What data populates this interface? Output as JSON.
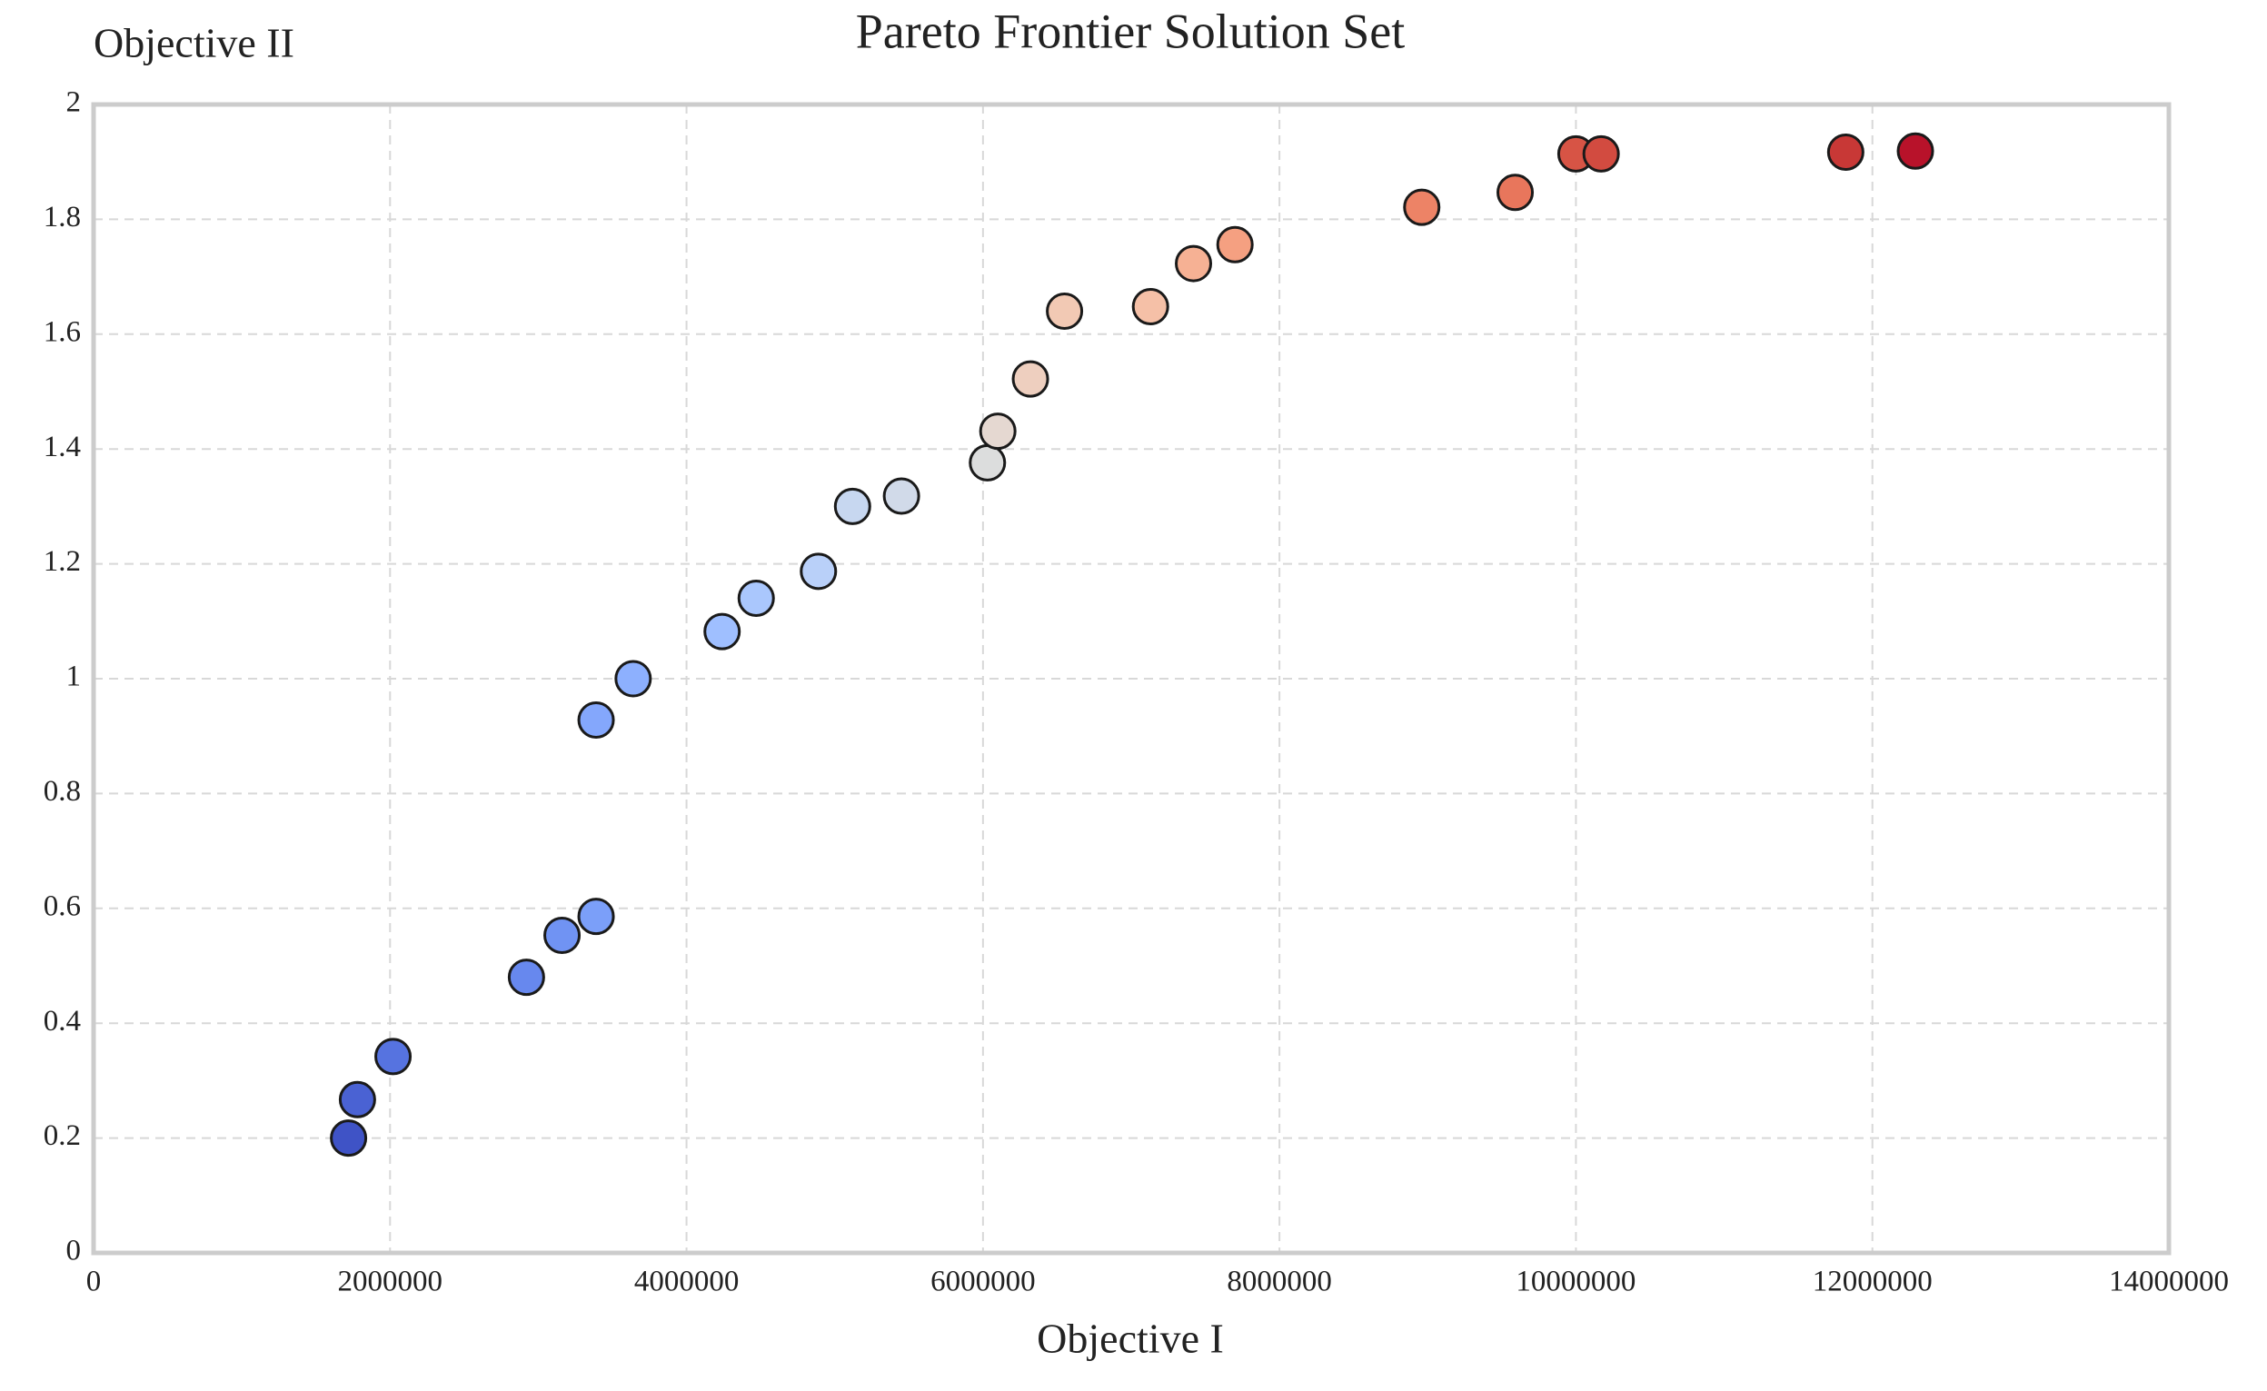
{
  "chart_data": {
    "type": "scatter",
    "title": "Pareto Frontier Solution Set",
    "x_label": "Objective I",
    "y_label": "Objective II",
    "x": [
      1720000,
      1780000,
      2020000,
      2920000,
      3160000,
      3390000,
      3390000,
      3640000,
      4240000,
      4470000,
      4890000,
      5120000,
      5450000,
      6030000,
      6100000,
      6320000,
      6550000,
      7130000,
      7420000,
      7700000,
      8960000,
      9590000,
      10000000,
      10170000,
      11820000,
      12290000
    ],
    "values": [
      0.2,
      0.267,
      0.342,
      0.48,
      0.553,
      0.586,
      0.928,
      1.0,
      1.082,
      1.14,
      1.187,
      1.3,
      1.318,
      1.376,
      1.431,
      1.522,
      1.64,
      1.648,
      1.723,
      1.756,
      1.821,
      1.847,
      1.914,
      1.914,
      1.917,
      1.919
    ],
    "colors": [
      "#3f53c6",
      "#4a62d3",
      "#5673e0",
      "#6788ee",
      "#7093f3",
      "#7b9ff9",
      "#84a7fc",
      "#8db0fe",
      "#9fbfff",
      "#aac7fd",
      "#b9d0f9",
      "#c7d7f0",
      "#d1dae9",
      "#dcdddd",
      "#e5d8d1",
      "#eecfbf",
      "#f2c9b4",
      "#f5c0a7",
      "#f6b194",
      "#f5a081",
      "#ed8366",
      "#e8765c",
      "#d75445",
      "#d24b40",
      "#c83836",
      "#b8122a"
    ],
    "xlim": [
      0,
      14000000
    ],
    "xticks": [
      0,
      2000000,
      4000000,
      6000000,
      8000000,
      10000000,
      12000000,
      14000000
    ],
    "ylim": [
      0,
      2
    ],
    "yticks": [
      0,
      0.2,
      0.4,
      0.6,
      0.8,
      1,
      1.2,
      1.4,
      1.6,
      1.8,
      2
    ],
    "grid": true
  }
}
